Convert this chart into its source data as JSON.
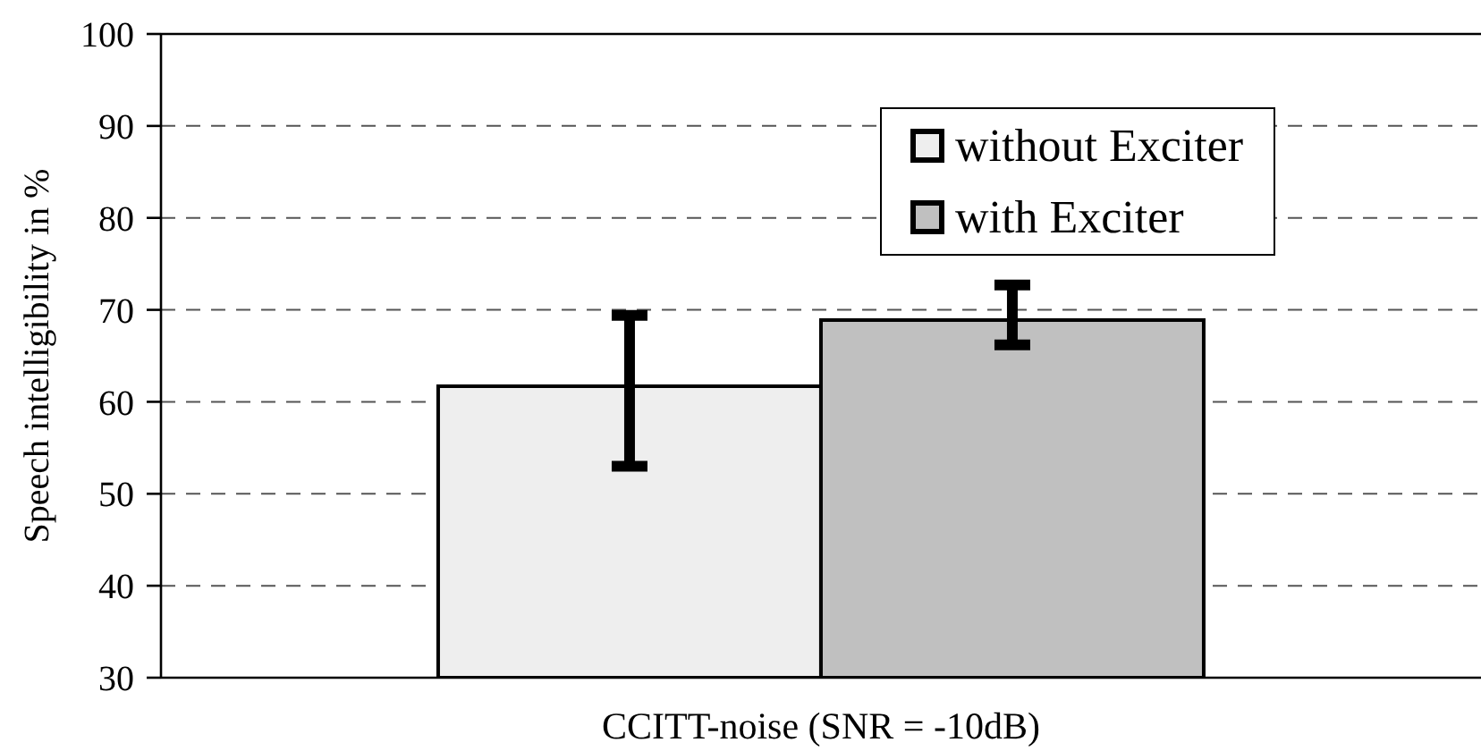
{
  "chart_data": {
    "type": "bar",
    "ylabel": "Speech intelligibility in %",
    "categories": [
      "CCITT-noise (SNR = -10dB)"
    ],
    "series": [
      {
        "name": "without Exciter",
        "color": "#eeeeee",
        "values": [
          61.7
        ],
        "errors": [
          [
            53,
            69.4
          ]
        ]
      },
      {
        "name": "with Exciter",
        "color": "#c0c0c0",
        "values": [
          68.9
        ],
        "errors": [
          [
            66.2,
            72.7
          ]
        ]
      }
    ],
    "ylim": [
      30,
      100
    ],
    "yticks": [
      30,
      40,
      50,
      60,
      70,
      80,
      90,
      100
    ],
    "grid": "y",
    "legend": "top right"
  }
}
